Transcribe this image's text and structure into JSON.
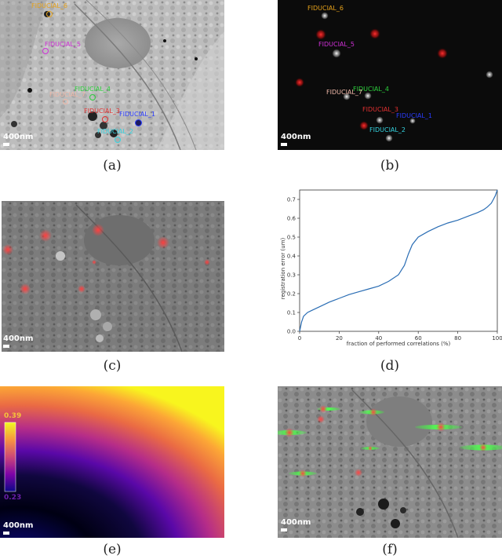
{
  "figure": {
    "captions": {
      "a": "(a)",
      "b": "(b)",
      "c": "(c)",
      "d": "(d)",
      "e": "(e)",
      "f": "(f)"
    },
    "scalebar_label": "400nm",
    "fiducials": [
      "FIDUCIAL_1",
      "FIDUCIAL_2",
      "FIDUCIAL_3",
      "FIDUCIAL_4",
      "FIDUCIAL_5",
      "FIDUCIAL_6",
      "FIDUCIAL_7"
    ],
    "fiducial_colors": {
      "FIDUCIAL_1": "#2a3cff",
      "FIDUCIAL_2": "#35d4e0",
      "FIDUCIAL_3": "#e23030",
      "FIDUCIAL_4": "#2ccf3c",
      "FIDUCIAL_5": "#d030d8",
      "FIDUCIAL_6": "#e7a21a",
      "FIDUCIAL_7": "#f0b8a8"
    },
    "colorbar": {
      "max_label": "0.39",
      "min_label": "0.23",
      "colormap": "plasma"
    }
  },
  "chart_data": {
    "type": "line",
    "title": "",
    "xlabel": "fraction of performed correlations (%)",
    "ylabel": "registration error (um)",
    "xlim": [
      0,
      100
    ],
    "ylim": [
      0,
      0.75
    ],
    "xticks": [
      "0",
      "20",
      "40",
      "60",
      "80",
      "100"
    ],
    "yticks": [
      "0.0",
      "0.1",
      "0.2",
      "0.3",
      "0.4",
      "0.5",
      "0.6",
      "0.7"
    ],
    "grid": false,
    "color": "#2a6db4",
    "series": [
      {
        "name": "",
        "x": [
          0,
          1,
          2,
          4,
          6,
          10,
          15,
          20,
          25,
          30,
          35,
          40,
          45,
          50,
          53,
          55,
          57,
          60,
          65,
          70,
          75,
          80,
          85,
          90,
          93,
          95,
          97,
          98,
          99,
          100
        ],
        "y": [
          0.0,
          0.05,
          0.08,
          0.1,
          0.11,
          0.13,
          0.155,
          0.175,
          0.195,
          0.21,
          0.225,
          0.24,
          0.265,
          0.3,
          0.35,
          0.41,
          0.46,
          0.5,
          0.53,
          0.555,
          0.575,
          0.59,
          0.61,
          0.63,
          0.645,
          0.66,
          0.68,
          0.7,
          0.72,
          0.75
        ]
      }
    ]
  }
}
